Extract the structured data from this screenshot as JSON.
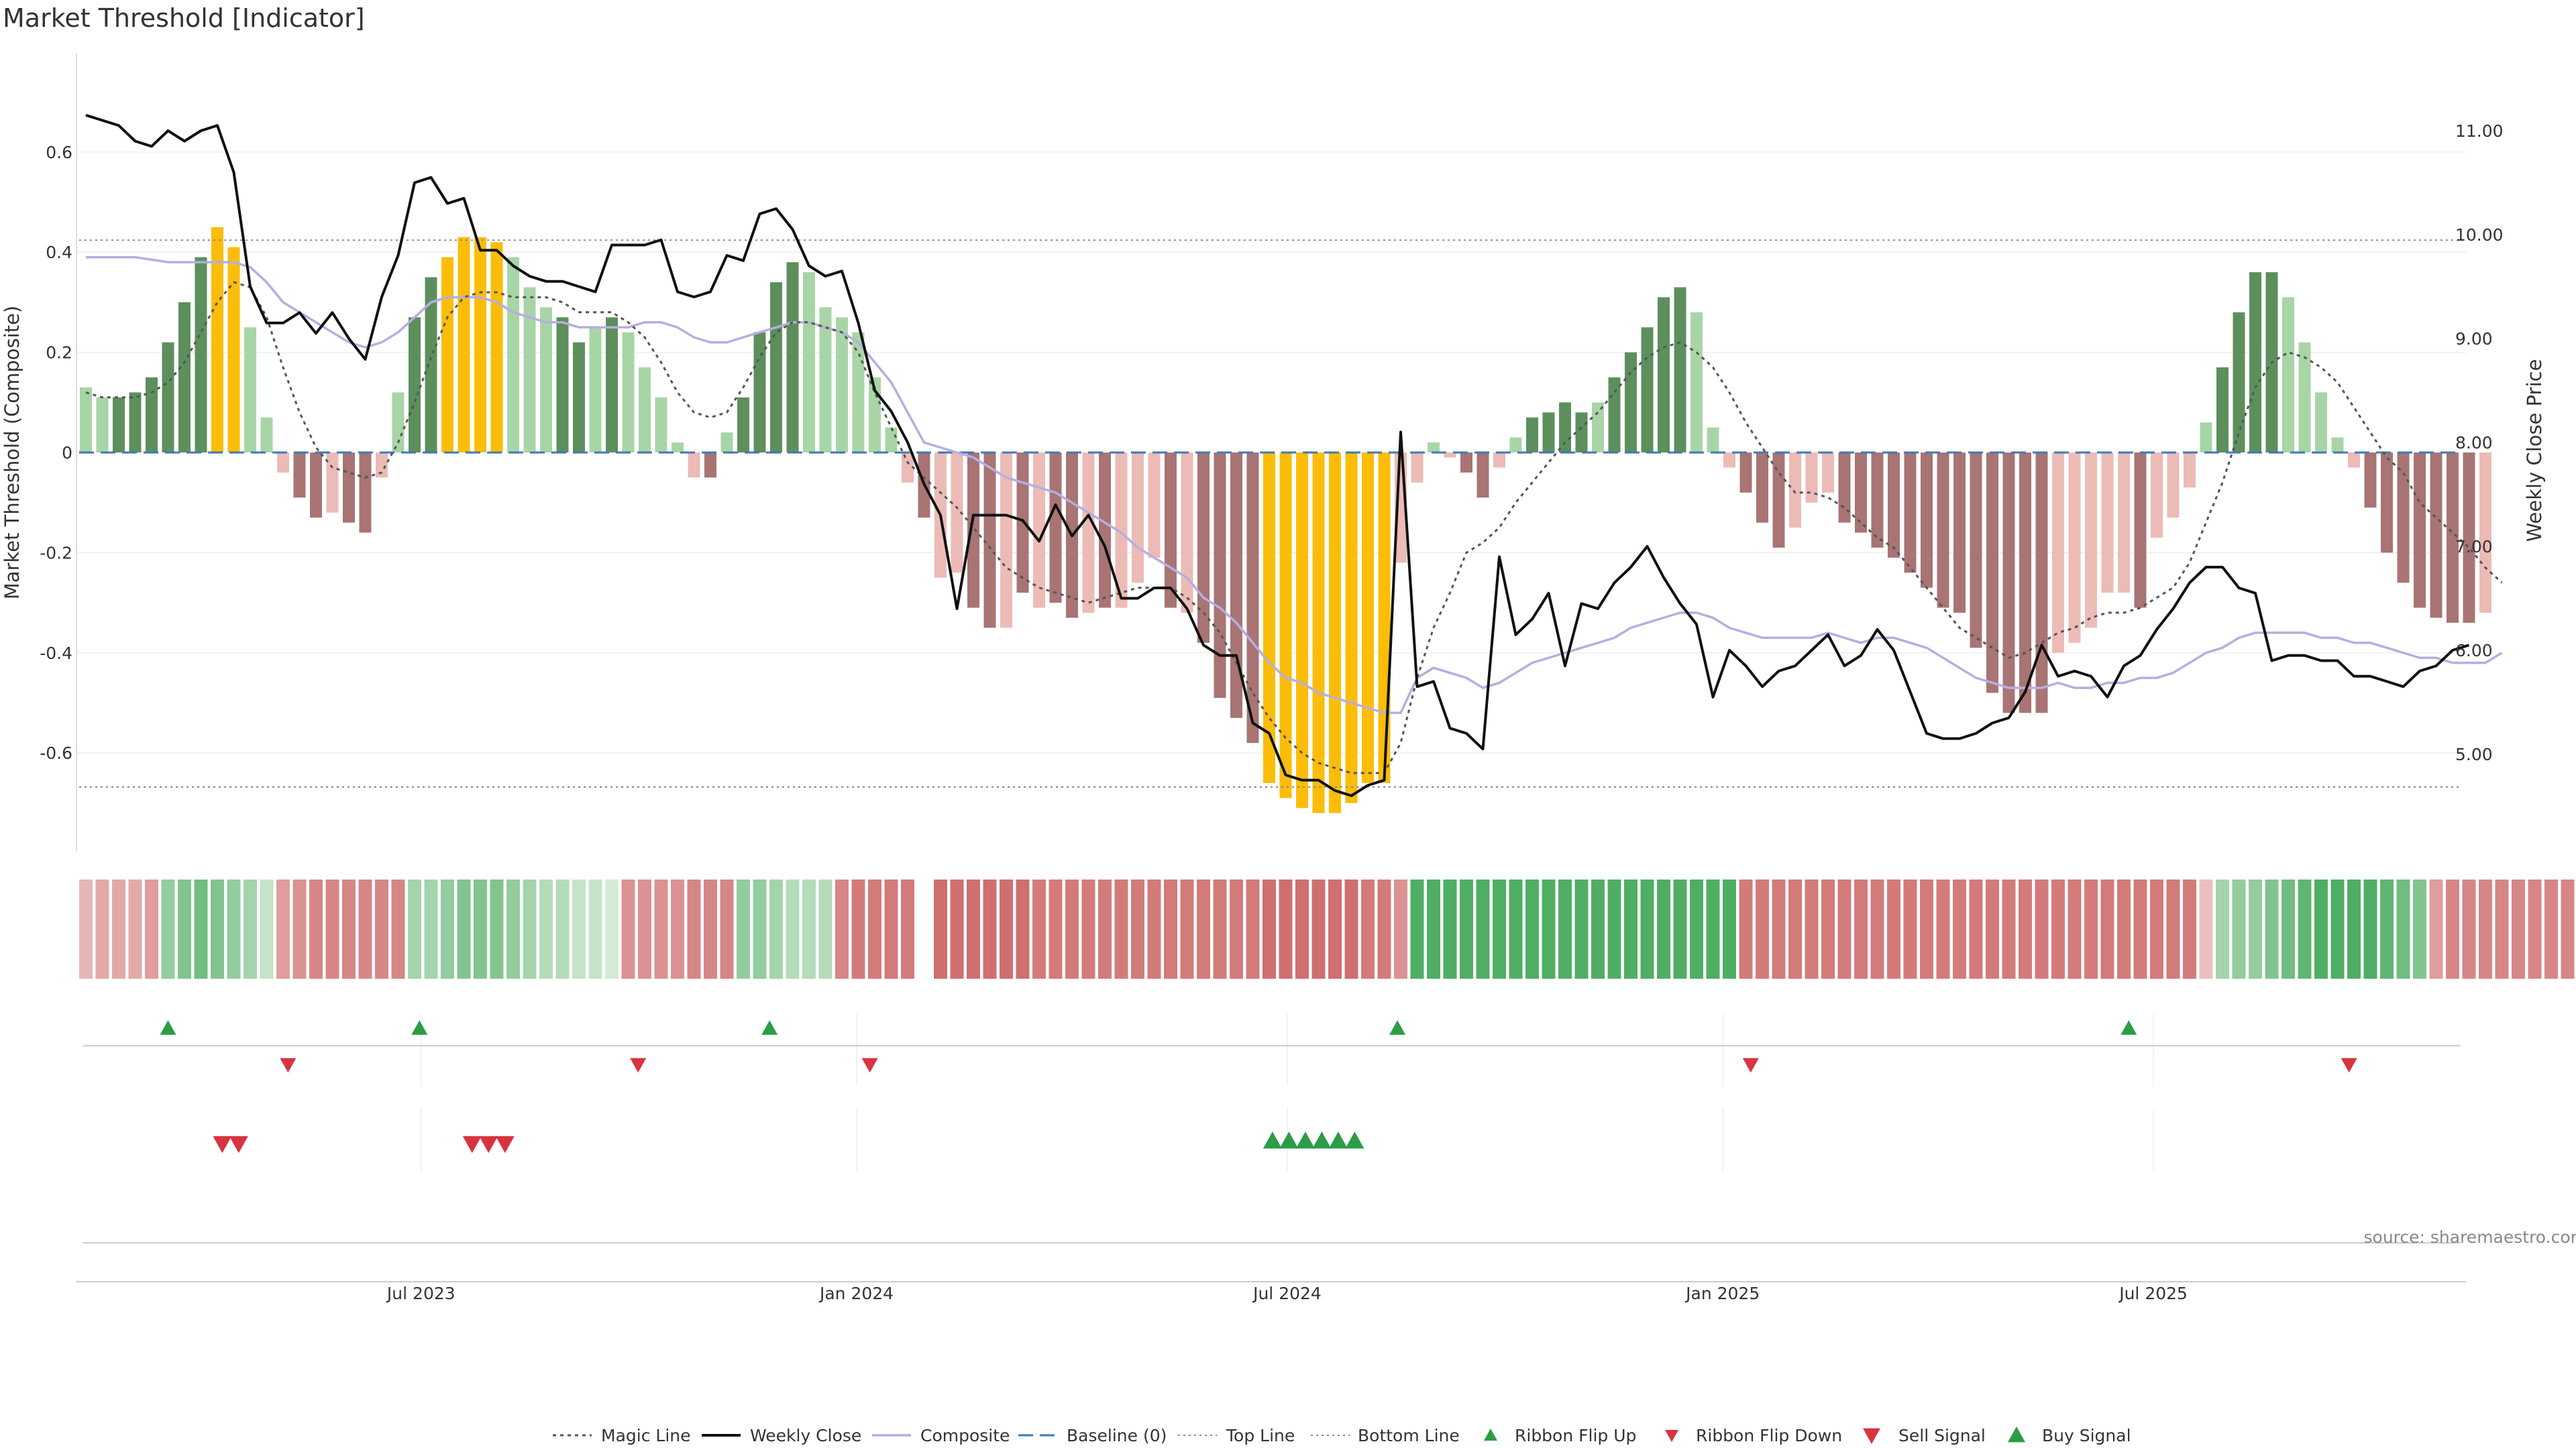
{
  "title": "Market Threshold [Indicator]",
  "source": "source: sharemaestro.com",
  "colors": {
    "strong_up": "#5d8f5d",
    "weak_up": "#a8d5a6",
    "strong_down": "#a87474",
    "weak_down": "#ecbbb6",
    "extreme": "#fbbd08",
    "weekly_close": "#111111",
    "composite": "#b6aee0",
    "magic": "#555555",
    "baseline": "#3d7ab0",
    "threshold": "#888888",
    "buy": "#2a9d45",
    "sell": "#d9333f"
  },
  "chart_data": [
    {
      "type": "bar+line",
      "name": "main",
      "ylabel_left": "Market Threshold (Composite)",
      "ylabel_right": "Weekly Close Price",
      "ylim_left": [
        -0.78,
        0.8
      ],
      "ylim_right": [
        4.4,
        11.8
      ],
      "yticks_left": [
        "0.6",
        "0.4",
        "0.2",
        "0",
        "-0.2",
        "-0.4",
        "-0.6"
      ],
      "yticks_right": [
        "11.00",
        "10.00",
        "9.00",
        "8.00",
        "7.00",
        "6.00",
        "5.00"
      ],
      "top_line": 0.424,
      "bottom_line": -0.668,
      "baseline": 0,
      "xlim": [
        0,
        150
      ],
      "x_tick_labels": [
        "Jul 2023",
        "Jan 2024",
        "Jul 2024",
        "Jan 2025",
        "Jul 2025"
      ],
      "x_tick_weeks": [
        20.4,
        46.9,
        73.1,
        99.6,
        125.8
      ],
      "bars": {
        "values": [
          0.13,
          0.11,
          0.11,
          0.12,
          0.15,
          0.22,
          0.3,
          0.39,
          0.45,
          0.41,
          0.25,
          0.07,
          -0.04,
          -0.09,
          -0.13,
          -0.12,
          -0.14,
          -0.16,
          -0.05,
          0.12,
          0.27,
          0.35,
          0.39,
          0.43,
          0.43,
          0.42,
          0.39,
          0.33,
          0.29,
          0.27,
          0.22,
          0.25,
          0.27,
          0.24,
          0.17,
          0.11,
          0.02,
          -0.05,
          -0.05,
          0.04,
          0.11,
          0.24,
          0.34,
          0.38,
          0.36,
          0.29,
          0.27,
          0.24,
          0.15,
          0.05,
          -0.06,
          -0.13,
          -0.25,
          -0.24,
          -0.31,
          -0.35,
          -0.35,
          -0.28,
          -0.31,
          -0.3,
          -0.33,
          -0.32,
          -0.31,
          -0.31,
          -0.26,
          -0.21,
          -0.31,
          -0.32,
          -0.38,
          -0.49,
          -0.53,
          -0.58,
          -0.66,
          -0.69,
          -0.71,
          -0.72,
          -0.72,
          -0.7,
          -0.66,
          -0.66,
          -0.22,
          -0.06,
          0.02,
          -0.01,
          -0.04,
          -0.09,
          -0.03,
          0.03,
          0.07,
          0.08,
          0.1,
          0.08,
          0.1,
          0.15,
          0.2,
          0.25,
          0.31,
          0.33,
          0.28,
          0.05,
          -0.03,
          -0.08,
          -0.14,
          -0.19,
          -0.15,
          -0.1,
          -0.08,
          -0.14,
          -0.16,
          -0.19,
          -0.21,
          -0.24,
          -0.27,
          -0.31,
          -0.32,
          -0.39,
          -0.48,
          -0.52,
          -0.52,
          -0.52,
          -0.4,
          -0.38,
          -0.35,
          -0.28,
          -0.28,
          -0.31,
          -0.17,
          -0.13,
          -0.07,
          0.06,
          0.17,
          0.28,
          0.36,
          0.36,
          0.31,
          0.22,
          0.12,
          0.03,
          -0.03,
          -0.11,
          -0.2,
          -0.26,
          -0.31,
          -0.33,
          -0.34,
          -0.34,
          -0.32
        ],
        "category": [
          "wu",
          "wu",
          "su",
          "su",
          "su",
          "su",
          "su",
          "su",
          "ex",
          "ex",
          "wu",
          "wu",
          "wd",
          "sd",
          "sd",
          "wd",
          "sd",
          "sd",
          "wd",
          "wu",
          "su",
          "su",
          "ex",
          "ex",
          "ex",
          "ex",
          "wu",
          "wu",
          "wu",
          "su",
          "su",
          "wu",
          "su",
          "wu",
          "wu",
          "wu",
          "wu",
          "wd",
          "sd",
          "wu",
          "su",
          "su",
          "su",
          "su",
          "wu",
          "wu",
          "wu",
          "wu",
          "wu",
          "wu",
          "wd",
          "sd",
          "wd",
          "wd",
          "sd",
          "sd",
          "wd",
          "sd",
          "wd",
          "sd",
          "sd",
          "wd",
          "sd",
          "wd",
          "wd",
          "wd",
          "sd",
          "wd",
          "sd",
          "sd",
          "sd",
          "sd",
          "ex",
          "ex",
          "ex",
          "ex",
          "ex",
          "ex",
          "ex",
          "ex",
          "wd",
          "wd",
          "wu",
          "wd",
          "sd",
          "sd",
          "wd",
          "wu",
          "su",
          "su",
          "su",
          "su",
          "wu",
          "su",
          "su",
          "su",
          "su",
          "su",
          "wu",
          "wu",
          "wd",
          "sd",
          "sd",
          "sd",
          "wd",
          "wd",
          "wd",
          "sd",
          "sd",
          "sd",
          "sd",
          "sd",
          "sd",
          "sd",
          "sd",
          "sd",
          "sd",
          "sd",
          "sd",
          "sd",
          "wd",
          "wd",
          "wd",
          "wd",
          "wd",
          "sd",
          "wd",
          "wd",
          "wd",
          "wu",
          "su",
          "su",
          "su",
          "su",
          "wu",
          "wu",
          "wu",
          "wu",
          "wd",
          "sd",
          "sd",
          "sd",
          "sd",
          "sd",
          "sd",
          "sd",
          "wd"
        ]
      },
      "weekly_close": [
        11.15,
        11.1,
        11.05,
        10.9,
        10.85,
        11.0,
        10.9,
        11.0,
        11.05,
        10.6,
        9.5,
        9.15,
        9.15,
        9.25,
        9.05,
        9.25,
        9.0,
        8.8,
        9.4,
        9.8,
        10.5,
        10.55,
        10.3,
        10.35,
        9.85,
        9.85,
        9.7,
        9.6,
        9.55,
        9.55,
        9.5,
        9.45,
        9.9,
        9.9,
        9.9,
        9.95,
        9.45,
        9.4,
        9.45,
        9.8,
        9.75,
        10.2,
        10.25,
        10.05,
        9.7,
        9.6,
        9.65,
        9.15,
        8.5,
        8.3,
        8.0,
        7.6,
        7.3,
        6.4,
        7.3,
        7.3,
        7.3,
        7.25,
        7.05,
        7.4,
        7.1,
        7.3,
        7.0,
        6.5,
        6.5,
        6.6,
        6.6,
        6.4,
        6.05,
        5.95,
        5.95,
        5.3,
        5.2,
        4.8,
        4.75,
        4.75,
        4.65,
        4.6,
        4.7,
        4.75,
        8.1,
        5.65,
        5.7,
        5.25,
        5.2,
        5.05,
        6.9,
        6.15,
        6.3,
        6.55,
        5.85,
        6.45,
        6.4,
        6.65,
        6.8,
        7.0,
        6.7,
        6.45,
        6.25,
        5.55,
        6.0,
        5.85,
        5.65,
        5.8,
        5.85,
        6.0,
        6.15,
        5.85,
        5.95,
        6.2,
        6.0,
        5.6,
        5.2,
        5.15,
        5.15,
        5.2,
        5.3,
        5.35,
        5.6,
        6.05,
        5.75,
        5.8,
        5.75,
        5.55,
        5.85,
        5.95,
        6.2,
        6.4,
        6.65,
        6.8,
        6.8,
        6.6,
        6.55,
        5.9,
        5.95,
        5.95,
        5.9,
        5.9,
        5.75,
        5.75,
        5.7,
        5.65,
        5.8,
        5.85,
        6.0,
        6.05
      ],
      "composite": [
        0.39,
        0.39,
        0.39,
        0.39,
        0.385,
        0.38,
        0.38,
        0.38,
        0.38,
        0.38,
        0.37,
        0.34,
        0.3,
        0.28,
        0.26,
        0.24,
        0.22,
        0.21,
        0.22,
        0.24,
        0.27,
        0.3,
        0.31,
        0.31,
        0.31,
        0.3,
        0.28,
        0.27,
        0.26,
        0.26,
        0.25,
        0.25,
        0.25,
        0.25,
        0.26,
        0.26,
        0.25,
        0.23,
        0.22,
        0.22,
        0.23,
        0.24,
        0.25,
        0.26,
        0.26,
        0.25,
        0.24,
        0.22,
        0.18,
        0.14,
        0.08,
        0.02,
        0.01,
        0.0,
        -0.01,
        -0.03,
        -0.05,
        -0.06,
        -0.07,
        -0.08,
        -0.1,
        -0.12,
        -0.14,
        -0.16,
        -0.19,
        -0.21,
        -0.23,
        -0.25,
        -0.29,
        -0.31,
        -0.34,
        -0.38,
        -0.42,
        -0.45,
        -0.46,
        -0.48,
        -0.49,
        -0.5,
        -0.51,
        -0.52,
        -0.52,
        -0.45,
        -0.43,
        -0.44,
        -0.45,
        -0.47,
        -0.46,
        -0.44,
        -0.42,
        -0.41,
        -0.4,
        -0.39,
        -0.38,
        -0.37,
        -0.35,
        -0.34,
        -0.33,
        -0.32,
        -0.32,
        -0.33,
        -0.35,
        -0.36,
        -0.37,
        -0.37,
        -0.37,
        -0.37,
        -0.36,
        -0.37,
        -0.38,
        -0.37,
        -0.37,
        -0.38,
        -0.39,
        -0.41,
        -0.43,
        -0.45,
        -0.46,
        -0.47,
        -0.47,
        -0.47,
        -0.46,
        -0.47,
        -0.47,
        -0.46,
        -0.46,
        -0.45,
        -0.45,
        -0.44,
        -0.42,
        -0.4,
        -0.39,
        -0.37,
        -0.36,
        -0.36,
        -0.36,
        -0.36,
        -0.37,
        -0.37,
        -0.38,
        -0.38,
        -0.39,
        -0.4,
        -0.41,
        -0.41,
        -0.42,
        -0.42,
        -0.42,
        -0.4
      ],
      "magic": [
        0.12,
        0.11,
        0.11,
        0.11,
        0.12,
        0.14,
        0.18,
        0.24,
        0.3,
        0.34,
        0.33,
        0.27,
        0.17,
        0.08,
        0.01,
        -0.03,
        -0.04,
        -0.05,
        -0.04,
        0.02,
        0.1,
        0.19,
        0.27,
        0.31,
        0.32,
        0.32,
        0.31,
        0.31,
        0.31,
        0.3,
        0.28,
        0.28,
        0.28,
        0.26,
        0.23,
        0.18,
        0.12,
        0.08,
        0.07,
        0.08,
        0.13,
        0.19,
        0.24,
        0.26,
        0.26,
        0.25,
        0.24,
        0.2,
        0.12,
        0.05,
        -0.02,
        -0.05,
        -0.08,
        -0.11,
        -0.15,
        -0.19,
        -0.23,
        -0.25,
        -0.27,
        -0.28,
        -0.29,
        -0.3,
        -0.29,
        -0.28,
        -0.27,
        -0.27,
        -0.27,
        -0.29,
        -0.32,
        -0.36,
        -0.42,
        -0.48,
        -0.53,
        -0.57,
        -0.6,
        -0.62,
        -0.63,
        -0.64,
        -0.64,
        -0.64,
        -0.58,
        -0.45,
        -0.35,
        -0.28,
        -0.2,
        -0.18,
        -0.15,
        -0.1,
        -0.06,
        -0.02,
        0.02,
        0.05,
        0.08,
        0.12,
        0.16,
        0.19,
        0.21,
        0.22,
        0.2,
        0.17,
        0.12,
        0.06,
        0.01,
        -0.04,
        -0.08,
        -0.08,
        -0.09,
        -0.11,
        -0.14,
        -0.17,
        -0.19,
        -0.23,
        -0.27,
        -0.31,
        -0.35,
        -0.37,
        -0.39,
        -0.41,
        -0.4,
        -0.38,
        -0.36,
        -0.35,
        -0.33,
        -0.32,
        -0.32,
        -0.31,
        -0.29,
        -0.27,
        -0.22,
        -0.14,
        -0.06,
        0.04,
        0.13,
        0.18,
        0.2,
        0.19,
        0.17,
        0.14,
        0.09,
        0.04,
        -0.01,
        -0.04,
        -0.1,
        -0.13,
        -0.16,
        -0.19,
        -0.23,
        -0.26
      ]
    },
    {
      "type": "heatmap",
      "name": "ribbon",
      "values": [
        -0.4,
        -0.5,
        -0.5,
        -0.5,
        -0.6,
        0.5,
        0.6,
        0.7,
        0.6,
        0.5,
        0.4,
        0.2,
        -0.6,
        -0.7,
        -0.8,
        -0.8,
        -0.8,
        -0.8,
        -0.8,
        -0.8,
        0.4,
        0.4,
        0.5,
        0.6,
        0.6,
        0.6,
        0.5,
        0.4,
        0.3,
        0.3,
        0.2,
        0.2,
        0.1,
        -0.7,
        -0.7,
        -0.7,
        -0.7,
        -0.8,
        -0.8,
        -0.8,
        0.5,
        0.5,
        0.4,
        0.3,
        0.3,
        0.3,
        -0.8,
        -0.9,
        -0.9,
        -0.9,
        -0.9,
        null,
        -1.0,
        -1.0,
        -1.0,
        -1.0,
        -1.0,
        -1.0,
        -0.9,
        -0.9,
        -0.9,
        -0.9,
        -0.9,
        -0.9,
        -0.9,
        -0.9,
        -0.9,
        -0.9,
        -0.9,
        -0.9,
        -0.9,
        -0.9,
        -1.0,
        -1.0,
        -1.0,
        -1.0,
        -1.0,
        -1.0,
        -0.9,
        -0.9,
        -0.7,
        0.9,
        0.9,
        0.9,
        0.9,
        0.9,
        0.9,
        0.9,
        0.9,
        0.9,
        0.9,
        0.9,
        0.9,
        0.9,
        0.9,
        0.9,
        0.9,
        0.9,
        0.9,
        0.9,
        0.9,
        -0.9,
        -0.9,
        -0.9,
        -0.9,
        -0.9,
        -0.9,
        -0.9,
        -0.9,
        -0.9,
        -0.9,
        -0.9,
        -0.9,
        -0.9,
        -0.9,
        -0.9,
        -0.9,
        -0.9,
        -0.9,
        -0.9,
        -0.9,
        -0.9,
        -0.9,
        -0.9,
        -0.9,
        -0.9,
        -0.9,
        -0.9,
        -0.9,
        -0.3,
        0.4,
        0.5,
        0.5,
        0.6,
        0.7,
        0.8,
        0.9,
        0.9,
        0.9,
        0.9,
        0.8,
        0.7,
        0.6,
        -0.6,
        -0.8,
        -0.8,
        -0.8,
        -0.8,
        -0.8,
        -0.8,
        -0.8,
        -0.8
      ]
    },
    {
      "type": "scatter",
      "name": "ribbon_flips",
      "flip_up_weeks": [
        5,
        20.3,
        41.6,
        79.8,
        124.3
      ],
      "flip_down_weeks": [
        12.3,
        33.6,
        47.7,
        101.3,
        137.7
      ]
    },
    {
      "type": "scatter",
      "name": "signals",
      "sell_weeks": [
        8.3,
        9.3,
        23.5,
        24.5,
        25.5
      ],
      "buy_weeks": [
        72.2,
        73.2,
        74.2,
        75.2,
        76.2,
        77.2
      ]
    }
  ],
  "legend": [
    {
      "label": "Magic Line",
      "key": "magic"
    },
    {
      "label": "Weekly Close",
      "key": "weekly_close"
    },
    {
      "label": "Composite",
      "key": "composite"
    },
    {
      "label": "Baseline (0)",
      "key": "baseline"
    },
    {
      "label": "Top Line",
      "key": "top"
    },
    {
      "label": "Bottom Line",
      "key": "bottom"
    },
    {
      "label": "Ribbon Flip Up",
      "key": "flip_up"
    },
    {
      "label": "Ribbon Flip Down",
      "key": "flip_down"
    },
    {
      "label": "Sell Signal",
      "key": "sell"
    },
    {
      "label": "Buy Signal",
      "key": "buy"
    }
  ]
}
